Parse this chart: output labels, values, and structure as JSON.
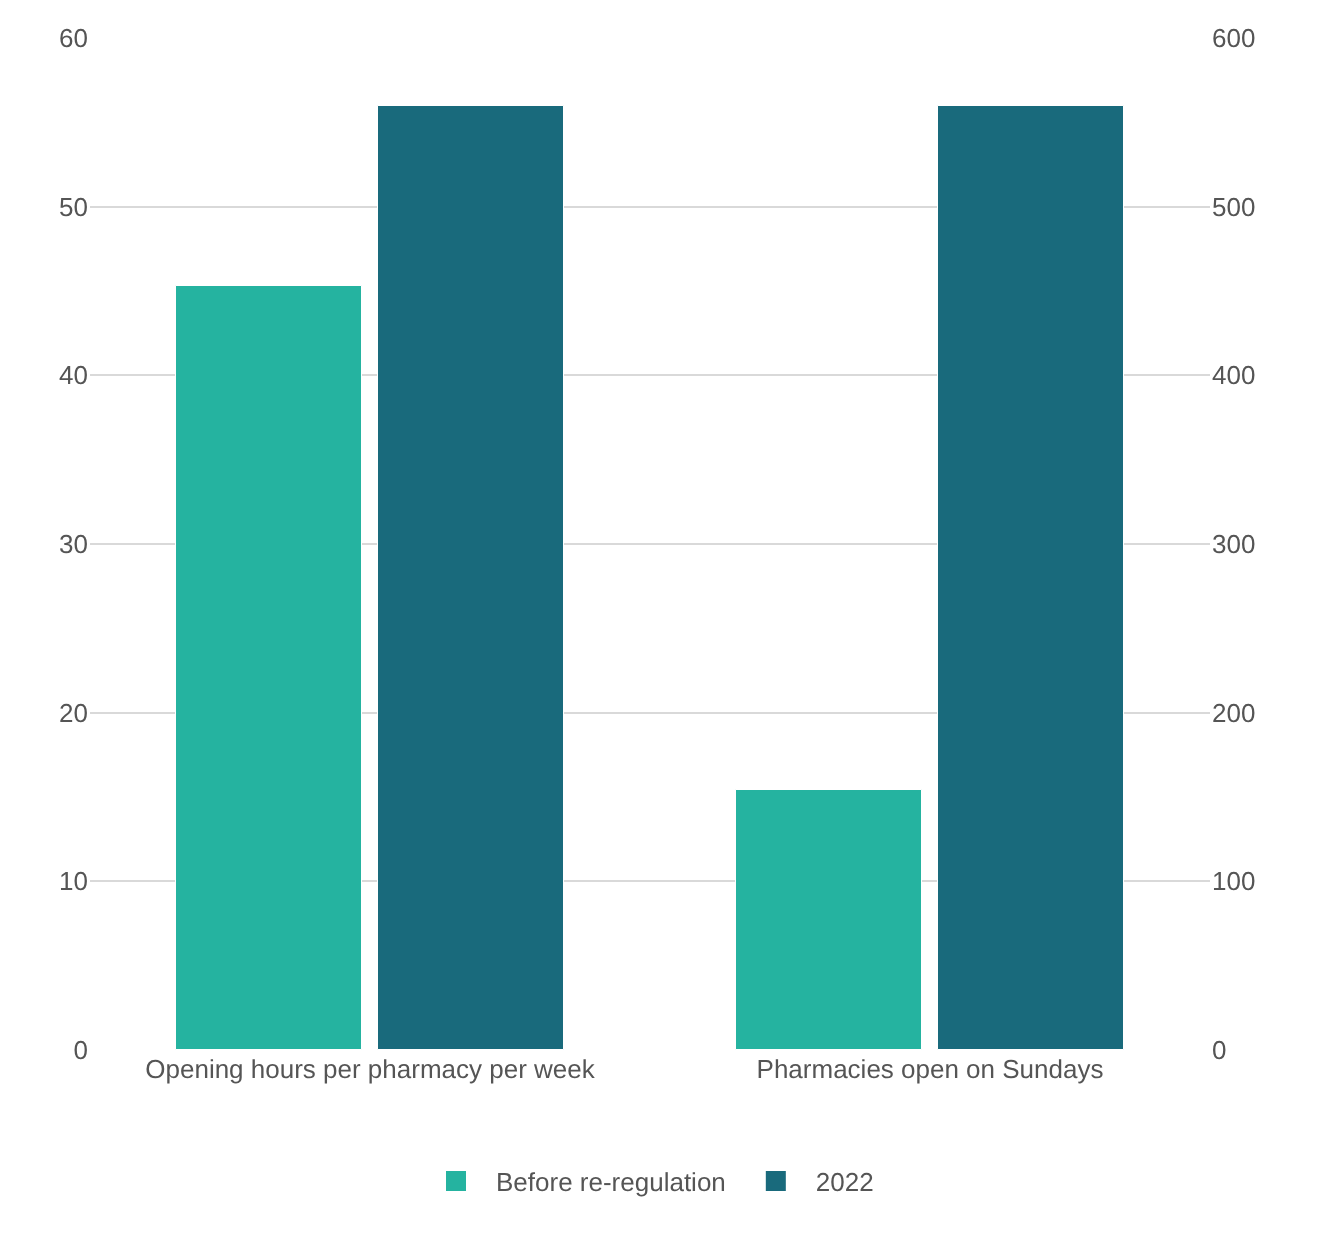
{
  "chart_data": {
    "type": "bar",
    "categories": [
      "Opening hours per pharmacy per week",
      "Pharmacies open on Sundays"
    ],
    "series": [
      {
        "name": "Before re-regulation",
        "color": "#25b3a0",
        "values": [
          45.3,
          null
        ]
      },
      {
        "name": "2022",
        "color": "#196a7c",
        "values": [
          56,
          null
        ]
      },
      {
        "color": "#25b3a0",
        "values": [
          null,
          154
        ],
        "axis": "y2"
      },
      {
        "color": "#196a7c",
        "values": [
          null,
          560
        ],
        "axis": "y2"
      }
    ],
    "ylim": [
      0,
      60
    ],
    "yticks": [
      0,
      10,
      20,
      30,
      40,
      50,
      60
    ],
    "y2lim": [
      0,
      600
    ],
    "y2ticks": [
      0,
      100,
      200,
      300,
      400,
      500,
      600
    ],
    "grid": "y",
    "legend": "bottom"
  }
}
